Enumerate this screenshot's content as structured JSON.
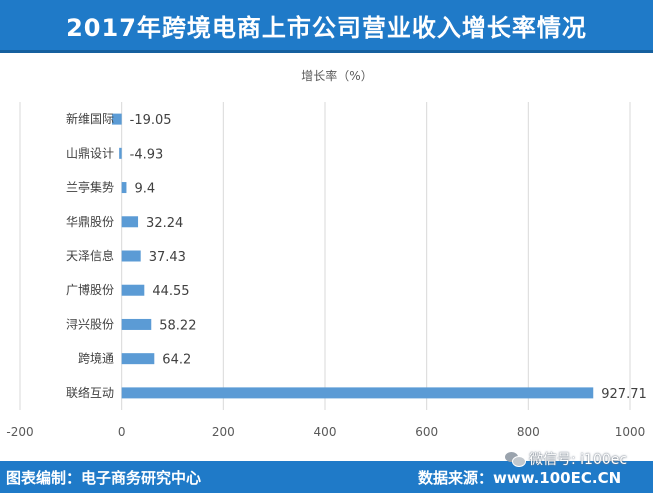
{
  "header": {
    "title": "2017年跨境电商上市公司营业收入增长率情况"
  },
  "footer": {
    "left_text": "图表编制：电子商务研究中心",
    "right_text": "数据来源：www.100EC.CN"
  },
  "watermark": {
    "text": "微信号: i100ec",
    "icon": "wechat-icon"
  },
  "colors": {
    "header_bg": "#1f7ac8",
    "bar": "#5b9bd5",
    "grid": "#d9d9d9"
  },
  "chart_data": {
    "type": "bar",
    "orientation": "horizontal",
    "title": "增长率（%）",
    "categories": [
      "新维国际",
      "山鼎设计",
      "兰亭集势",
      "华鼎股份",
      "天泽信息",
      "广博股份",
      "浔兴股份",
      "跨境通",
      "联络互动"
    ],
    "values": [
      -19.05,
      -4.93,
      9.4,
      32.24,
      37.43,
      44.55,
      58.22,
      64.2,
      927.71
    ],
    "value_labels": [
      "-19.05",
      "-4.93",
      "9.4",
      "32.24",
      "37.43",
      "44.55",
      "58.22",
      "64.2",
      "927.71"
    ],
    "xlim": [
      -200,
      1000
    ],
    "xticks": [
      -200,
      0,
      200,
      400,
      600,
      800,
      1000
    ],
    "xtick_labels": [
      "-200",
      "0",
      "200",
      "400",
      "600",
      "800",
      "1000"
    ],
    "grid": true,
    "legend": "none"
  }
}
